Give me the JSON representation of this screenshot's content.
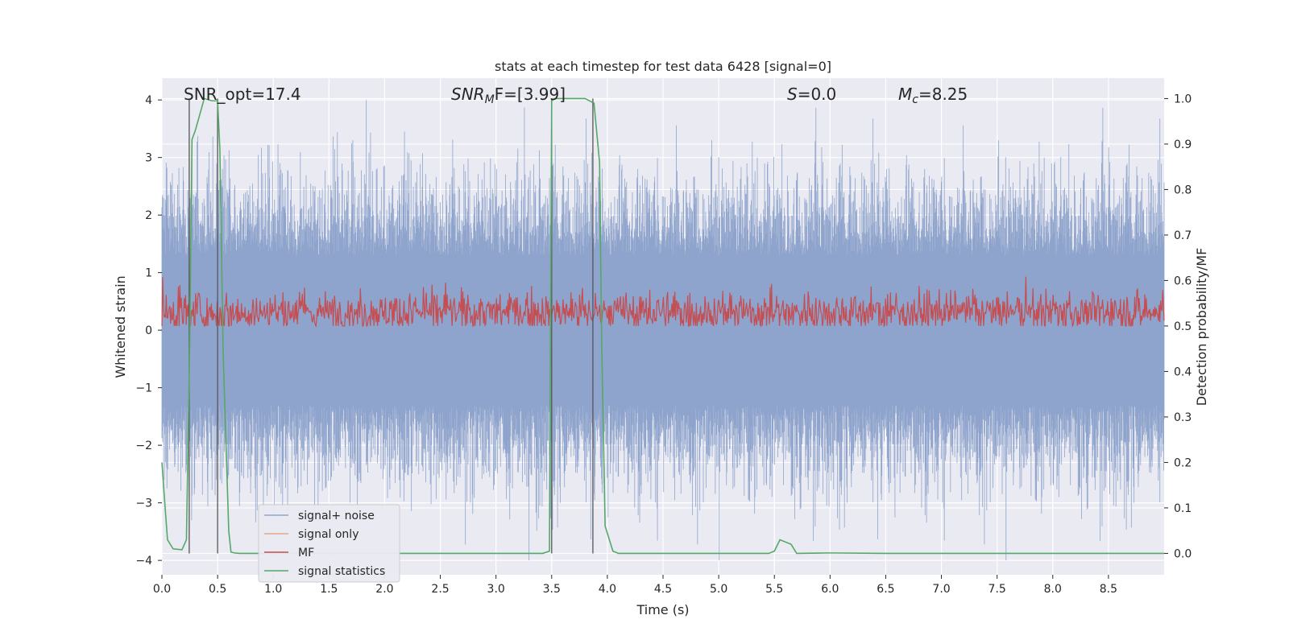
{
  "chart_data": {
    "type": "line",
    "title": "stats at each timestep for test data 6428 [signal=0]",
    "xlabel": "Time (s)",
    "ylabel": "Whitened strain",
    "y2label": "Detection probability/MF",
    "xlim": [
      0.0,
      9.0
    ],
    "ylim": [
      -4.25,
      4.38
    ],
    "y2lim": [
      -0.047,
      1.045
    ],
    "xticks": [
      "0.0",
      "0.5",
      "1.0",
      "1.5",
      "2.0",
      "2.5",
      "3.0",
      "3.5",
      "4.0",
      "4.5",
      "5.0",
      "5.5",
      "6.0",
      "6.5",
      "7.0",
      "7.5",
      "8.0",
      "8.5"
    ],
    "xtick_values": [
      0.0,
      0.5,
      1.0,
      1.5,
      2.0,
      2.5,
      3.0,
      3.5,
      4.0,
      4.5,
      5.0,
      5.5,
      6.0,
      6.5,
      7.0,
      7.5,
      8.0,
      8.5
    ],
    "yticks": [
      "−4",
      "−3",
      "−2",
      "−1",
      "0",
      "1",
      "2",
      "3",
      "4"
    ],
    "ytick_values": [
      -4,
      -3,
      -2,
      -1,
      0,
      1,
      2,
      3,
      4
    ],
    "y2ticks": [
      "0.0",
      "0.1",
      "0.2",
      "0.3",
      "0.4",
      "0.5",
      "0.6",
      "0.7",
      "0.8",
      "0.9",
      "1.0"
    ],
    "y2tick_values": [
      0.0,
      0.1,
      0.2,
      0.3,
      0.4,
      0.5,
      0.6,
      0.7,
      0.8,
      0.9,
      1.0
    ],
    "annotations": {
      "snr_opt": "SNR_opt=17.4",
      "snr_mf_symbol": "SNR",
      "snr_mf_sub": "M",
      "snr_mf_tail": "F=[3.99]",
      "s_symbol": "S",
      "s_tail": "=0.0",
      "mc_symbol": "M",
      "mc_sub": "c",
      "mc_tail": "=8.25"
    },
    "series": [
      {
        "name": "signal+ noise",
        "color": "#8fa4cc",
        "style": "noise",
        "amplitude_range": [
          -4.0,
          4.0
        ]
      },
      {
        "name": "signal only",
        "color": "#e8a58a",
        "style": "flat",
        "values": []
      },
      {
        "name": "MF",
        "color": "#c44e52",
        "style": "noise",
        "amplitude_range": [
          0.0,
          1.0
        ]
      },
      {
        "name": "signal statistics",
        "color": "#55a868",
        "axis": "right",
        "x": [
          0.0,
          0.02,
          0.05,
          0.1,
          0.18,
          0.22,
          0.25,
          0.27,
          0.3,
          0.38,
          0.45,
          0.5,
          0.52,
          0.55,
          0.6,
          0.62,
          0.65,
          0.7,
          1.0,
          2.0,
          3.0,
          3.42,
          3.48,
          3.5,
          3.53,
          3.56,
          3.6,
          3.8,
          3.88,
          3.93,
          3.95,
          3.98,
          4.05,
          4.1,
          5.0,
          5.45,
          5.5,
          5.55,
          5.6,
          5.65,
          5.7,
          6.0,
          6.5,
          7.0,
          8.0,
          9.0
        ],
        "y": [
          0.2,
          0.13,
          0.03,
          0.01,
          0.008,
          0.03,
          0.47,
          0.91,
          0.93,
          1.0,
          0.995,
          0.995,
          0.89,
          0.44,
          0.05,
          0.003,
          0.001,
          0.0,
          0.0,
          0.0,
          0.0,
          0.0,
          0.005,
          0.995,
          1.0,
          1.0,
          1.0,
          1.0,
          0.99,
          0.86,
          0.45,
          0.06,
          0.005,
          0.0,
          0.0,
          0.0,
          0.005,
          0.03,
          0.025,
          0.02,
          0.0,
          0.001,
          0.0,
          0.0,
          0.0,
          0.0
        ]
      }
    ],
    "vlines": [
      0.245,
      0.5,
      3.5,
      3.87
    ],
    "legend": {
      "position": "lower-left",
      "entries": [
        "signal+ noise",
        "signal only",
        "MF",
        "signal statistics"
      ]
    }
  }
}
